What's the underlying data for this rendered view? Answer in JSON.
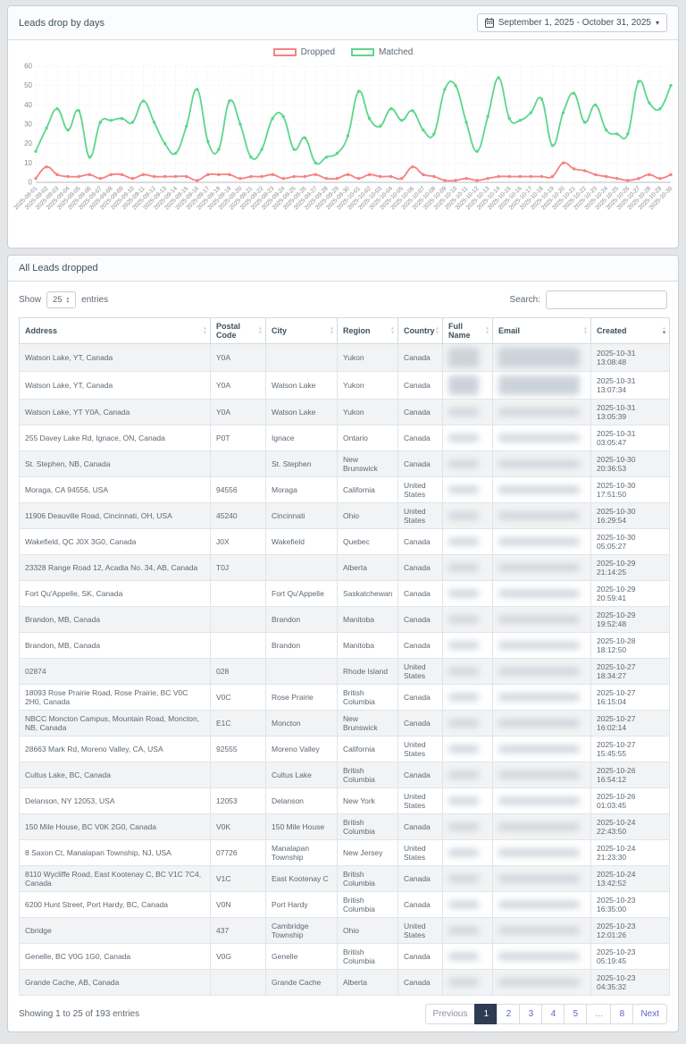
{
  "colors": {
    "dropped": "#f58280",
    "matched": "#5cd68c",
    "link": "#6361d1",
    "active_page_bg": "#2f3a53",
    "grid": "#dcdcdc",
    "axis_text": "#8a8a8a"
  },
  "chart_card": {
    "title": "Leads drop by days",
    "date_range": "September 1, 2025 - October 31, 2025"
  },
  "chart_data": {
    "type": "line",
    "title": "Leads drop by days",
    "legend_position": "top",
    "grid": true,
    "ylim": [
      0,
      60
    ],
    "yticks": [
      0,
      10,
      20,
      30,
      40,
      50,
      60
    ],
    "x": [
      "2025-09-01",
      "2025-09-02",
      "2025-09-03",
      "2025-09-04",
      "2025-09-05",
      "2025-09-06",
      "2025-09-07",
      "2025-09-08",
      "2025-09-09",
      "2025-09-10",
      "2025-09-11",
      "2025-09-12",
      "2025-09-13",
      "2025-09-14",
      "2025-09-15",
      "2025-09-16",
      "2025-09-17",
      "2025-09-18",
      "2025-09-19",
      "2025-09-20",
      "2025-09-21",
      "2025-09-22",
      "2025-09-23",
      "2025-09-24",
      "2025-09-25",
      "2025-09-26",
      "2025-09-27",
      "2025-09-28",
      "2025-09-29",
      "2025-09-30",
      "2025-10-01",
      "2025-10-02",
      "2025-10-03",
      "2025-10-04",
      "2025-10-05",
      "2025-10-06",
      "2025-10-07",
      "2025-10-08",
      "2025-10-09",
      "2025-10-10",
      "2025-10-11",
      "2025-10-12",
      "2025-10-13",
      "2025-10-14",
      "2025-10-15",
      "2025-10-16",
      "2025-10-17",
      "2025-10-18",
      "2025-10-19",
      "2025-10-20",
      "2025-10-21",
      "2025-10-22",
      "2025-10-23",
      "2025-10-24",
      "2025-10-25",
      "2025-10-26",
      "2025-10-27",
      "2025-10-28",
      "2025-10-29",
      "2025-10-30"
    ],
    "series": [
      {
        "name": "Dropped",
        "color": "#f58280",
        "values": [
          2,
          8,
          4,
          3,
          3,
          4,
          2,
          4,
          4,
          2,
          4,
          3,
          3,
          3,
          3,
          1,
          4,
          4,
          4,
          2,
          3,
          3,
          4,
          2,
          3,
          3,
          4,
          2,
          2,
          4,
          2,
          4,
          3,
          3,
          2,
          8,
          4,
          3,
          1,
          1,
          2,
          1,
          2,
          3,
          3,
          3,
          3,
          3,
          3,
          10,
          7,
          6,
          4,
          3,
          2,
          1,
          2,
          4,
          2,
          4
        ]
      },
      {
        "name": "Matched",
        "color": "#5cd68c",
        "values": [
          16,
          28,
          38,
          27,
          37,
          13,
          31,
          32,
          33,
          31,
          42,
          31,
          20,
          15,
          29,
          48,
          21,
          17,
          42,
          30,
          13,
          17,
          33,
          34,
          17,
          23,
          10,
          13,
          15,
          24,
          47,
          33,
          29,
          38,
          32,
          37,
          27,
          25,
          48,
          50,
          31,
          16,
          34,
          54,
          33,
          32,
          36,
          43,
          19,
          36,
          46,
          31,
          40,
          27,
          25,
          25,
          52,
          41,
          38,
          50
        ]
      }
    ]
  },
  "table_card": {
    "title": "All Leads dropped",
    "show_label": "Show",
    "page_length": "25",
    "entries_label": "entries",
    "search_label": "Search:",
    "search_value": "",
    "columns": [
      "Address",
      "Postal Code",
      "City",
      "Region",
      "Country",
      "Full Name",
      "Email",
      "Created"
    ],
    "sorted_column": "Created",
    "sort_direction": "desc",
    "blurred_columns": [
      "Full Name",
      "Email"
    ],
    "rows": [
      {
        "address": "Watson Lake, YT, Canada",
        "postal_code": "Y0A",
        "city": "",
        "region": "Yukon",
        "country": "Canada",
        "created": "2025-10-31 13:08:48"
      },
      {
        "address": "Watson Lake, YT, Canada",
        "postal_code": "Y0A",
        "city": "Watson Lake",
        "region": "Yukon",
        "country": "Canada",
        "created": "2025-10-31 13:07:34"
      },
      {
        "address": "Watson Lake, YT Y0A, Canada",
        "postal_code": "Y0A",
        "city": "Watson Lake",
        "region": "Yukon",
        "country": "Canada",
        "created": "2025-10-31 13:05:39"
      },
      {
        "address": "255 Davey Lake Rd, Ignace, ON, Canada",
        "postal_code": "P0T",
        "city": "Ignace",
        "region": "Ontario",
        "country": "Canada",
        "created": "2025-10-31 03:05:47"
      },
      {
        "address": "St. Stephen, NB, Canada",
        "postal_code": "",
        "city": "St. Stephen",
        "region": "New Brunswick",
        "country": "Canada",
        "created": "2025-10-30 20:36:53"
      },
      {
        "address": "Moraga, CA 94556, USA",
        "postal_code": "94556",
        "city": "Moraga",
        "region": "California",
        "country": "United States",
        "created": "2025-10-30 17:51:50"
      },
      {
        "address": "11906 Deauville Road, Cincinnati, OH, USA",
        "postal_code": "45240",
        "city": "Cincinnati",
        "region": "Ohio",
        "country": "United States",
        "created": "2025-10-30 16:29:54"
      },
      {
        "address": "Wakefield, QC J0X 3G0, Canada",
        "postal_code": "J0X",
        "city": "Wakefield",
        "region": "Quebec",
        "country": "Canada",
        "created": "2025-10-30 05:05:27"
      },
      {
        "address": "23328 Range Road 12, Acadia No. 34, AB, Canada",
        "postal_code": "T0J",
        "city": "",
        "region": "Alberta",
        "country": "Canada",
        "created": "2025-10-29 21:14:25"
      },
      {
        "address": "Fort Qu'Appelle, SK, Canada",
        "postal_code": "",
        "city": "Fort Qu'Appelle",
        "region": "Saskatchewan",
        "country": "Canada",
        "created": "2025-10-29 20:59:41"
      },
      {
        "address": "Brandon, MB, Canada",
        "postal_code": "",
        "city": "Brandon",
        "region": "Manitoba",
        "country": "Canada",
        "created": "2025-10-29 19:52:48"
      },
      {
        "address": "Brandon, MB, Canada",
        "postal_code": "",
        "city": "Brandon",
        "region": "Manitoba",
        "country": "Canada",
        "created": "2025-10-28 18:12:50"
      },
      {
        "address": "02874",
        "postal_code": "028",
        "city": "",
        "region": "Rhode Island",
        "country": "United States",
        "created": "2025-10-27 18:34:27"
      },
      {
        "address": "18093 Rose Prairie Road, Rose Prairie, BC V0C 2H0, Canada",
        "postal_code": "V0C",
        "city": "Rose Prairie",
        "region": "British Columbia",
        "country": "Canada",
        "created": "2025-10-27 16:15:04"
      },
      {
        "address": "NBCC Moncton Campus, Mountain Road, Moncton, NB, Canada",
        "postal_code": "E1C",
        "city": "Moncton",
        "region": "New Brunswick",
        "country": "Canada",
        "created": "2025-10-27 16:02:14"
      },
      {
        "address": "28663 Mark Rd, Moreno Valley, CA, USA",
        "postal_code": "92555",
        "city": "Moreno Valley",
        "region": "California",
        "country": "United States",
        "created": "2025-10-27 15:45:55"
      },
      {
        "address": "Cultus Lake, BC, Canada",
        "postal_code": "",
        "city": "Cultus Lake",
        "region": "British Columbia",
        "country": "Canada",
        "created": "2025-10-26 16:54:12"
      },
      {
        "address": "Delanson, NY 12053, USA",
        "postal_code": "12053",
        "city": "Delanson",
        "region": "New York",
        "country": "United States",
        "created": "2025-10-26 01:03:45"
      },
      {
        "address": "150 Mile House, BC V0K 2G0, Canada",
        "postal_code": "V0K",
        "city": "150 Mile House",
        "region": "British Columbia",
        "country": "Canada",
        "created": "2025-10-24 22:43:50"
      },
      {
        "address": "8 Saxon Ct, Manalapan Township, NJ, USA",
        "postal_code": "07726",
        "city": "Manalapan Township",
        "region": "New Jersey",
        "country": "United States",
        "created": "2025-10-24 21:23:30"
      },
      {
        "address": "8110 Wycliffe Road, East Kootenay C, BC V1C 7C4, Canada",
        "postal_code": "V1C",
        "city": "East Kootenay C",
        "region": "British Columbia",
        "country": "Canada",
        "created": "2025-10-24 13:42:52"
      },
      {
        "address": "6200 Hunt Street, Port Hardy, BC, Canada",
        "postal_code": "V0N",
        "city": "Port Hardy",
        "region": "British Columbia",
        "country": "Canada",
        "created": "2025-10-23 16:35:00"
      },
      {
        "address": "Cbridge",
        "postal_code": "437",
        "city": "Cambridge Township",
        "region": "Ohio",
        "country": "United States",
        "created": "2025-10-23 12:01:26"
      },
      {
        "address": "Genelle, BC V0G 1G0, Canada",
        "postal_code": "V0G",
        "city": "Genelle",
        "region": "British Columbia",
        "country": "Canada",
        "created": "2025-10-23 05:19:45"
      },
      {
        "address": "Grande Cache, AB, Canada",
        "postal_code": "",
        "city": "Grande Cache",
        "region": "Alberta",
        "country": "Canada",
        "created": "2025-10-23 04:35:32"
      }
    ],
    "footer": {
      "info": "Showing 1 to 25 of 193 entries",
      "pagination": {
        "previous_label": "Previous",
        "next_label": "Next",
        "pages": [
          "1",
          "2",
          "3",
          "4",
          "5",
          "…",
          "8"
        ],
        "active_page": "1"
      }
    }
  }
}
